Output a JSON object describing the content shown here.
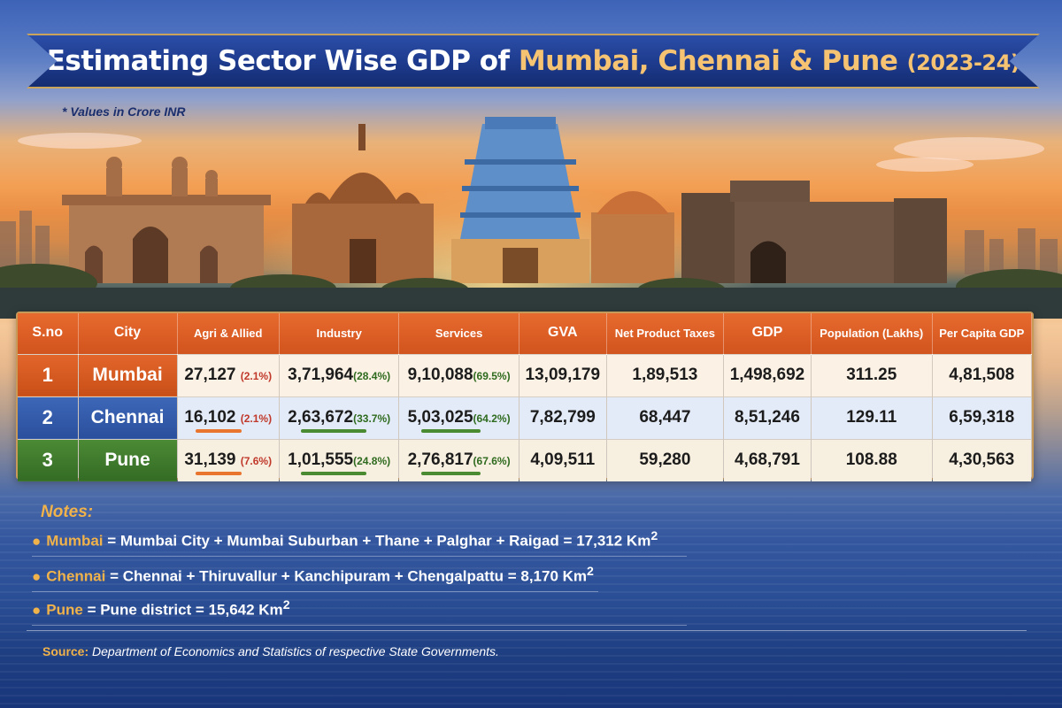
{
  "title": {
    "part1": "Estimating Sector Wise GDP of ",
    "cities": "Mumbai, Chennai & Pune",
    "year": "(2023-24)"
  },
  "subtitle": "* Values in Crore INR",
  "table": {
    "headers": [
      "S.no",
      "City",
      "Agri & Allied",
      "Industry",
      "Services",
      "GVA",
      "Net Product Taxes",
      "GDP",
      "Population (Lakhs)",
      "Per Capita GDP"
    ],
    "rows": [
      {
        "sno": "1",
        "city": "Mumbai",
        "agri": "27,127",
        "agri_pct": "(2.1%)",
        "industry": "3,71,964",
        "industry_pct": "(28.4%)",
        "services": "9,10,088",
        "services_pct": "(69.5%)",
        "gva": "13,09,179",
        "taxes": "1,89,513",
        "gdp": "1,498,692",
        "population": "311.25",
        "per_capita": "4,81,508"
      },
      {
        "sno": "2",
        "city": "Chennai",
        "agri": "16,102",
        "agri_pct": "(2.1%)",
        "industry": "2,63,672",
        "industry_pct": "(33.7%)",
        "services": "5,03,025",
        "services_pct": "(64.2%)",
        "gva": "7,82,799",
        "taxes": "68,447",
        "gdp": "8,51,246",
        "population": "129.11",
        "per_capita": "6,59,318"
      },
      {
        "sno": "3",
        "city": "Pune",
        "agri": "31,139",
        "agri_pct": "(7.6%)",
        "industry": "1,01,555",
        "industry_pct": "(24.8%)",
        "services": "2,76,817",
        "services_pct": "(67.6%)",
        "gva": "4,09,511",
        "taxes": "59,280",
        "gdp": "4,68,791",
        "population": "108.88",
        "per_capita": "4,30,563"
      }
    ]
  },
  "notes": {
    "title": "Notes:",
    "items": [
      {
        "city": "Mumbai",
        "text": " = Mumbai City + Mumbai Suburban + Thane + Palghar + Raigad = ",
        "area": "17,312 Km",
        "sup": "2"
      },
      {
        "city": "Chennai",
        "text": " = Chennai + Thiruvallur + Kanchipuram + Chengalpattu = ",
        "area": "8,170 Km",
        "sup": "2"
      },
      {
        "city": "Pune",
        "text": " = Pune district = ",
        "area": "15,642 Km",
        "sup": "2"
      }
    ]
  },
  "source": {
    "label": "Source:",
    "text": " Department of Economics and Statistics of respective State Governments."
  },
  "colors": {
    "mumbai": "#d9581f",
    "chennai": "#2f57a8",
    "pune": "#3f7d2c",
    "header": "#e0622a",
    "accent": "#f0b24a"
  }
}
